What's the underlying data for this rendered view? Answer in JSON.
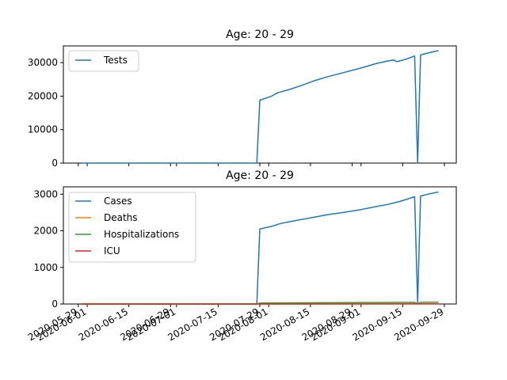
{
  "chart_data": [
    {
      "type": "line",
      "title": "Age: 20 - 29",
      "xlabel": "",
      "ylabel": "",
      "ylim": [
        0,
        35000
      ],
      "y_ticks": [
        0,
        10000,
        20000,
        30000
      ],
      "y_tick_labels": [
        "0",
        "10000",
        "20000",
        "30000"
      ],
      "x_tick_labels_shown": false,
      "legend_position": "upper-left",
      "series": [
        {
          "name": "Tests",
          "color": "#1f77b4",
          "points": [
            [
              "2020-05-30",
              0
            ],
            [
              "2020-07-28",
              0
            ],
            [
              "2020-07-29",
              18800
            ],
            [
              "2020-08-02",
              20000
            ],
            [
              "2020-08-04",
              21000
            ],
            [
              "2020-08-08",
              22000
            ],
            [
              "2020-08-12",
              23200
            ],
            [
              "2020-08-16",
              24500
            ],
            [
              "2020-08-20",
              25600
            ],
            [
              "2020-08-26",
              27000
            ],
            [
              "2020-09-01",
              28400
            ],
            [
              "2020-09-06",
              29700
            ],
            [
              "2020-09-10",
              30500
            ],
            [
              "2020-09-12",
              30800
            ],
            [
              "2020-09-13",
              30300
            ],
            [
              "2020-09-16",
              31000
            ],
            [
              "2020-09-19",
              32000
            ],
            [
              "2020-09-20",
              0
            ],
            [
              "2020-09-21",
              32300
            ],
            [
              "2020-09-24",
              33000
            ],
            [
              "2020-09-27",
              33600
            ]
          ]
        }
      ]
    },
    {
      "type": "line",
      "title": "Age: 20 - 29",
      "xlabel": "",
      "ylabel": "",
      "ylim": [
        0,
        3200
      ],
      "y_ticks": [
        0,
        1000,
        2000,
        3000
      ],
      "y_tick_labels": [
        "0",
        "1000",
        "2000",
        "3000"
      ],
      "x_ticks": [
        "2020-05-29",
        "2020-06-01",
        "2020-06-15",
        "2020-06-29",
        "2020-07-01",
        "2020-07-15",
        "2020-07-29",
        "2020-08-01",
        "2020-08-15",
        "2020-08-29",
        "2020-09-01",
        "2020-09-15",
        "2020-09-29"
      ],
      "legend_position": "upper-left",
      "series": [
        {
          "name": "Cases",
          "color": "#1f77b4",
          "points": [
            [
              "2020-05-30",
              0
            ],
            [
              "2020-07-28",
              0
            ],
            [
              "2020-07-29",
              2050
            ],
            [
              "2020-08-02",
              2120
            ],
            [
              "2020-08-05",
              2200
            ],
            [
              "2020-08-10",
              2280
            ],
            [
              "2020-08-15",
              2350
            ],
            [
              "2020-08-20",
              2430
            ],
            [
              "2020-08-26",
              2500
            ],
            [
              "2020-09-01",
              2580
            ],
            [
              "2020-09-06",
              2660
            ],
            [
              "2020-09-10",
              2720
            ],
            [
              "2020-09-14",
              2800
            ],
            [
              "2020-09-19",
              2930
            ],
            [
              "2020-09-20",
              30
            ],
            [
              "2020-09-21",
              2950
            ],
            [
              "2020-09-24",
              3010
            ],
            [
              "2020-09-27",
              3060
            ]
          ]
        },
        {
          "name": "Deaths",
          "color": "#ff7f0e",
          "points": [
            [
              "2020-05-30",
              0
            ],
            [
              "2020-09-27",
              5
            ]
          ]
        },
        {
          "name": "Hospitalizations",
          "color": "#2ca02c",
          "points": [
            [
              "2020-05-30",
              0
            ],
            [
              "2020-07-28",
              0
            ],
            [
              "2020-07-29",
              25
            ],
            [
              "2020-08-20",
              35
            ],
            [
              "2020-09-19",
              45
            ],
            [
              "2020-09-20",
              0
            ],
            [
              "2020-09-21",
              45
            ],
            [
              "2020-09-27",
              50
            ]
          ]
        },
        {
          "name": "ICU",
          "color": "#d62728",
          "points": [
            [
              "2020-05-30",
              0
            ],
            [
              "2020-09-27",
              3
            ]
          ]
        }
      ]
    }
  ]
}
